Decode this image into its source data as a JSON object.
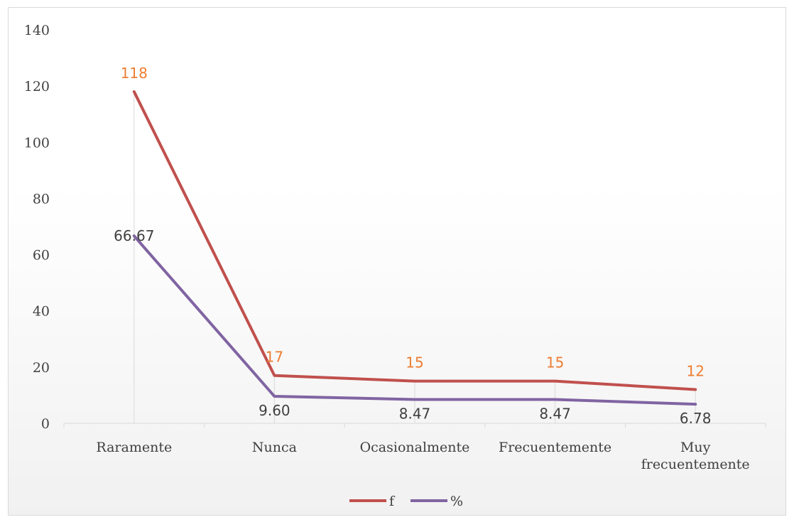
{
  "chart_data": {
    "type": "line",
    "categories": [
      "Raramente",
      "Nunca",
      "Ocasionalmente",
      "Frecuentemente",
      "Muy frecuentemente"
    ],
    "series": [
      {
        "name": "f",
        "values": [
          118,
          17,
          15,
          15,
          12
        ],
        "labels": [
          "118",
          "17",
          "15",
          "15",
          "12"
        ],
        "color": "#c0504d"
      },
      {
        "name": "%",
        "values": [
          66.67,
          9.6,
          8.47,
          8.47,
          6.78
        ],
        "labels": [
          "66.67",
          "9.60",
          "8.47",
          "8.47",
          "6.78"
        ],
        "color": "#8064a2"
      }
    ],
    "ylim": [
      0,
      140
    ],
    "yticks": [
      "0",
      "20",
      "40",
      "60",
      "80",
      "100",
      "120",
      "140"
    ],
    "ytick_values": [
      0,
      20,
      40,
      60,
      80,
      100,
      120,
      140
    ],
    "title": "",
    "xlabel": "",
    "ylabel": "",
    "legend": "bottom",
    "grid": false,
    "data_label_colors": {
      "f": "#ed7d31",
      "%": "#404040"
    }
  }
}
